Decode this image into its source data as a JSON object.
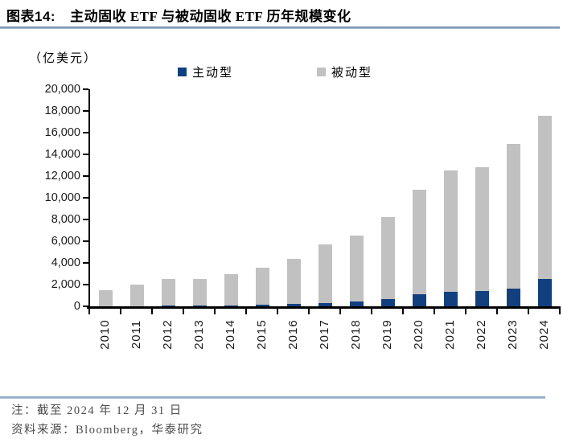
{
  "figure": {
    "label": "图表14:",
    "title": "主动固收 ETF 与被动固收 ETF 历年规模变化"
  },
  "chart": {
    "unit_label": "（亿美元）"
  },
  "chart_data": {
    "type": "bar",
    "stacked": true,
    "title": "主动固收ETF与被动固收ETF历年规模变化",
    "unit": "亿美元",
    "categories": [
      "2010",
      "2011",
      "2012",
      "2013",
      "2014",
      "2015",
      "2016",
      "2017",
      "2018",
      "2019",
      "2020",
      "2021",
      "2022",
      "2023",
      "2024"
    ],
    "series": [
      {
        "name": "主动型",
        "color": "#12407f",
        "values": [
          20,
          30,
          40,
          50,
          70,
          150,
          200,
          300,
          450,
          700,
          1100,
          1350,
          1400,
          1650,
          2500
        ]
      },
      {
        "name": "被动型",
        "color": "#c1c1c1",
        "values": [
          1480,
          1970,
          2460,
          2500,
          2930,
          3400,
          4200,
          5400,
          6100,
          7550,
          9650,
          11150,
          11450,
          13350,
          15050
        ]
      }
    ],
    "ylim": [
      0,
      20000
    ],
    "ytick_interval": 2000,
    "ytick_labels": [
      "0",
      "2,000",
      "4,000",
      "6,000",
      "8,000",
      "10,000",
      "12,000",
      "14,000",
      "16,000",
      "18,000",
      "20,000"
    ],
    "grid": false,
    "legend_position": "top"
  },
  "footer": {
    "note": "注：截至 2024 年 12 月 31 日",
    "source": "资料来源：Bloomberg，华泰研究"
  },
  "colors": {
    "active_blue": "#12407f",
    "passive_gray": "#c1c1c1",
    "rule_blue": "#7d9cba",
    "footer_text": "#4c4c4c"
  }
}
